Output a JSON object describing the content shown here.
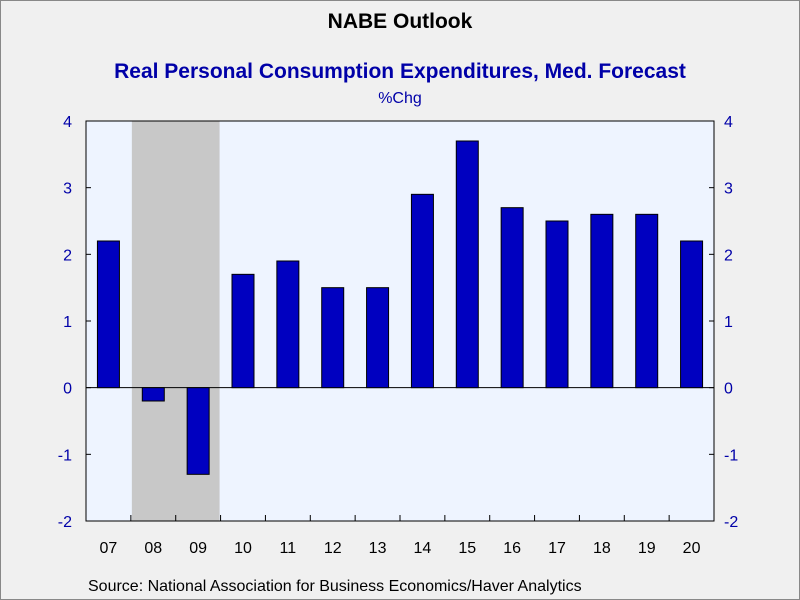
{
  "chart_data": {
    "type": "bar",
    "title": "NABE Outlook",
    "subtitle": "Real Personal Consumption Expenditures, Med. Forecast",
    "unit_label": "%Chg",
    "source": "Source:  National Association for Business Economics/Haver Analytics",
    "categories": [
      "07",
      "08",
      "09",
      "10",
      "11",
      "12",
      "13",
      "14",
      "15",
      "16",
      "17",
      "18",
      "19",
      "20"
    ],
    "values": [
      2.2,
      -0.2,
      -1.3,
      1.7,
      1.9,
      1.5,
      1.5,
      2.9,
      3.7,
      2.7,
      2.5,
      2.6,
      2.6,
      2.2
    ],
    "ylim": [
      -2,
      4
    ],
    "yticks": [
      "-2",
      "-1",
      "0",
      "1",
      "2",
      "3",
      "4"
    ],
    "recession_shading": {
      "from_category": "08",
      "to_category": "09"
    },
    "grid": false,
    "legend": "none",
    "colors": {
      "bar": "#0000c0",
      "bar_outline": "#000000",
      "plot_background": "#eef4ff",
      "recession": "#c8c8c8",
      "title_accent": "#0000a8"
    }
  }
}
